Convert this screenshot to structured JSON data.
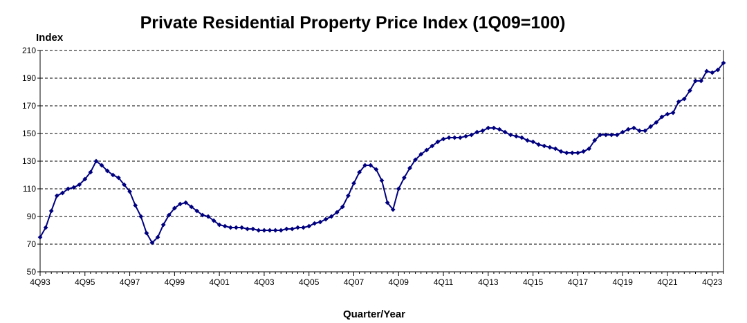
{
  "chart_data": {
    "type": "line",
    "title": "Private Residential Property Price Index (1Q09=100)",
    "ylabel": "Index",
    "xlabel": "Quarter/Year",
    "ylim": [
      50,
      210
    ],
    "yticks": [
      50,
      70,
      90,
      110,
      130,
      150,
      170,
      190,
      210
    ],
    "xtick_labels": [
      "4Q93",
      "4Q95",
      "4Q97",
      "4Q99",
      "4Q01",
      "4Q03",
      "4Q05",
      "4Q07",
      "4Q09",
      "4Q11",
      "4Q13",
      "4Q15",
      "4Q17",
      "4Q19",
      "4Q21",
      "4Q23"
    ],
    "grid": true,
    "line_color": "#00007f",
    "x_start": "4Q93",
    "series": [
      {
        "values": [
          75,
          82,
          94,
          105,
          107,
          110,
          111,
          113,
          117,
          122,
          130,
          127,
          123,
          120,
          118,
          113,
          108,
          98,
          90,
          78,
          71,
          75,
          84,
          91,
          96,
          99,
          100,
          97,
          94,
          91,
          90,
          87,
          84,
          83,
          82,
          82,
          82,
          81,
          81,
          80,
          80,
          80,
          80,
          80,
          81,
          81,
          82,
          82,
          83,
          85,
          86,
          88,
          90,
          93,
          97,
          105,
          114,
          122,
          127,
          127,
          124,
          116,
          100,
          95,
          110,
          118,
          125,
          131,
          135,
          138,
          141,
          144,
          146,
          147,
          147,
          147,
          148,
          149,
          151,
          152,
          154,
          154,
          153,
          151,
          149,
          148,
          147,
          145,
          144,
          142,
          141,
          140,
          139,
          137,
          136,
          136,
          136,
          137,
          139,
          145,
          149,
          149,
          149,
          149,
          151,
          153,
          154,
          152,
          152,
          155,
          158,
          162,
          164,
          165,
          173,
          175,
          181,
          188,
          188,
          195,
          194,
          196,
          201
        ]
      }
    ]
  }
}
